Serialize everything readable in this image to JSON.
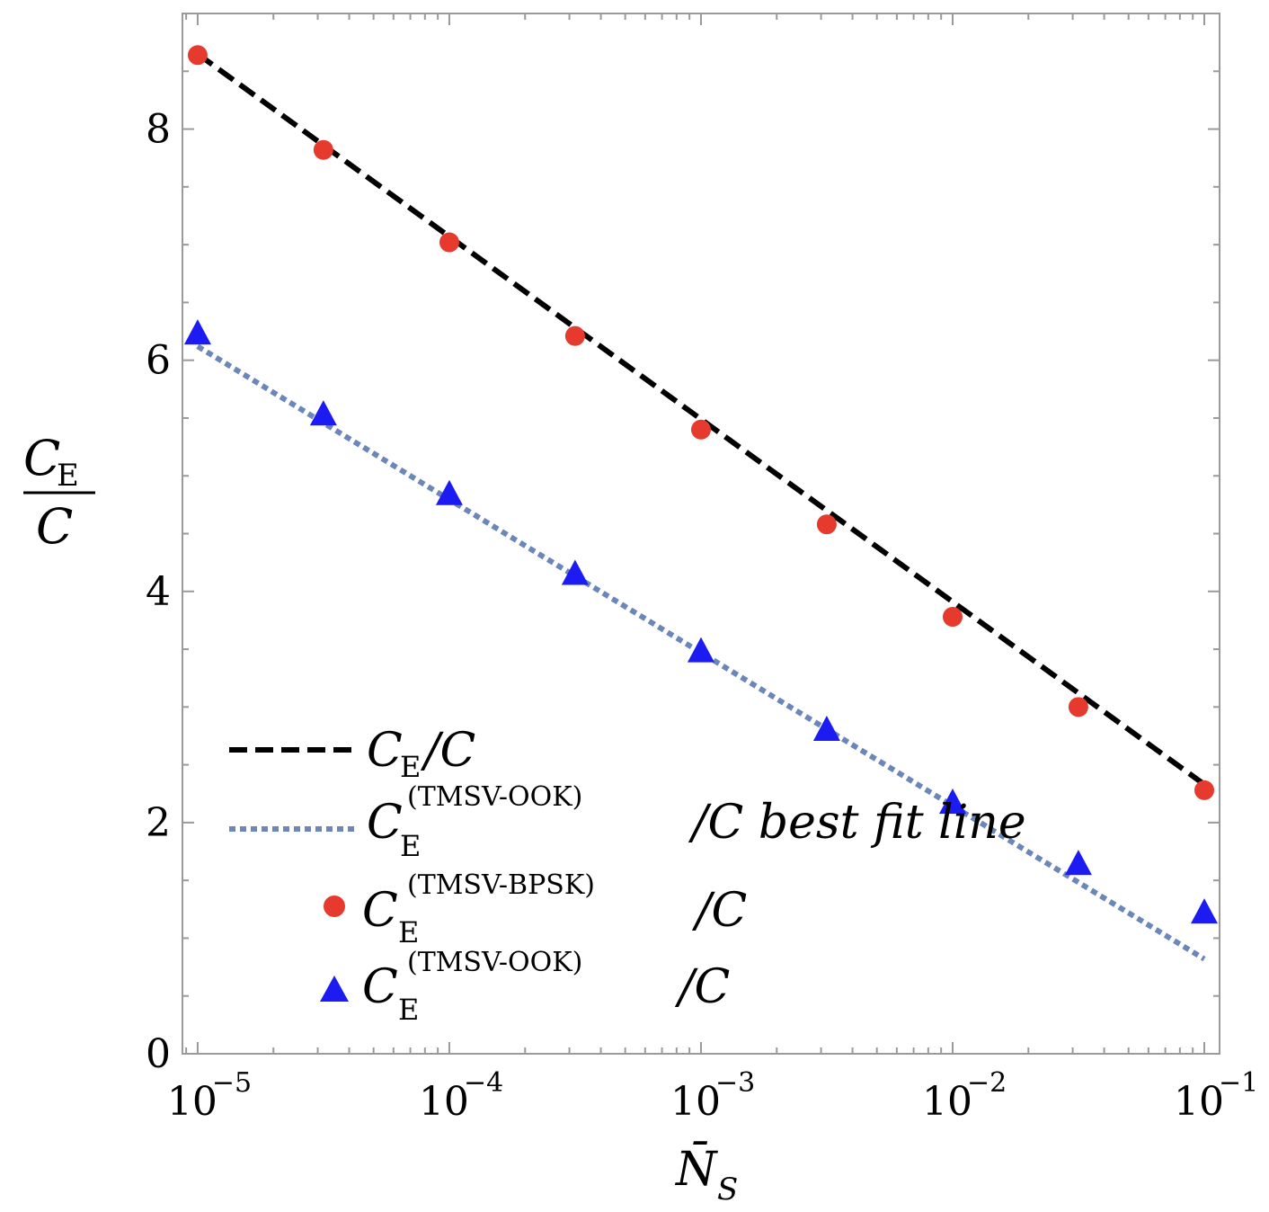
{
  "chart_data": {
    "type": "line",
    "x_scale": "log",
    "x": [
      1e-05,
      3.16e-05,
      0.0001,
      0.000316,
      0.001,
      0.00316,
      0.01,
      0.0316,
      0.1
    ],
    "x_ticks": [
      {
        "base": "10",
        "exp": "−5",
        "value": 1e-05
      },
      {
        "base": "10",
        "exp": "−4",
        "value": 0.0001
      },
      {
        "base": "10",
        "exp": "−3",
        "value": 0.001
      },
      {
        "base": "10",
        "exp": "−2",
        "value": 0.01
      },
      {
        "base": "10",
        "exp": "−1",
        "value": 0.1
      }
    ],
    "y_ticks": [
      {
        "label": "0",
        "value": 0
      },
      {
        "label": "2",
        "value": 2
      },
      {
        "label": "4",
        "value": 4
      },
      {
        "label": "6",
        "value": 6
      },
      {
        "label": "8",
        "value": 8
      }
    ],
    "xlim": [
      8.7e-06,
      0.115
    ],
    "ylim": [
      0,
      9.0
    ],
    "xlabel": {
      "main": "N̄",
      "sub": "S"
    },
    "ylabel": {
      "numerator": "C",
      "numerator_sub": "E",
      "denominator": "C"
    },
    "series": [
      {
        "name": "C_E/C",
        "style": "dashed-line",
        "color": "#000000",
        "x_range": [
          1e-05,
          0.1
        ],
        "y_range": [
          8.65,
          2.33
        ]
      },
      {
        "name": "C_E^(TMSV-OOK)/C best fit line",
        "style": "dotted-line",
        "color": "#6b86b8",
        "x_range": [
          1e-05,
          0.1
        ],
        "y_range": [
          6.12,
          0.82
        ]
      },
      {
        "name": "C_E^(TMSV-BPSK)/C",
        "style": "circle-marker",
        "color": "#e63a2e",
        "values": [
          8.64,
          7.82,
          7.02,
          6.21,
          5.4,
          4.58,
          3.78,
          3.0,
          2.28
        ]
      },
      {
        "name": "C_E^(TMSV-OOK)/C",
        "style": "triangle-marker",
        "color": "#1c1cf2",
        "values": [
          6.23,
          5.53,
          4.84,
          4.15,
          3.48,
          2.8,
          2.17,
          1.64,
          1.22
        ]
      }
    ],
    "legend": {
      "position": "bottom-left",
      "entries": [
        {
          "base": "C",
          "sub": "E",
          "sup": "",
          "suffix": "/C"
        },
        {
          "base": "C",
          "sub": "E",
          "sup": "(TMSV-OOK)",
          "suffix": "/C best fit line"
        },
        {
          "base": "C",
          "sub": "E",
          "sup": "(TMSV-BPSK)",
          "suffix": "/C"
        },
        {
          "base": "C",
          "sub": "E",
          "sup": "(TMSV-OOK)",
          "suffix": "/C"
        }
      ]
    }
  }
}
